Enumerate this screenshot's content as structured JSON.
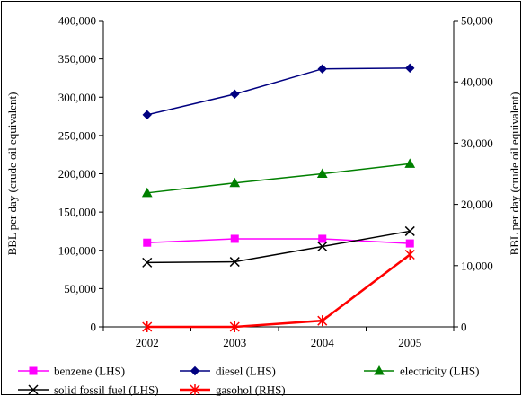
{
  "chart_data": {
    "type": "line",
    "categories": [
      "2002",
      "2003",
      "2004",
      "2005"
    ],
    "y_left": {
      "label": "BBL per day (crude oil equivalent)",
      "ylim": [
        0,
        400000
      ],
      "ticks": [
        "0",
        "50,000",
        "100,000",
        "150,000",
        "200,000",
        "250,000",
        "300,000",
        "350,000",
        "400,000"
      ],
      "tick_values": [
        0,
        50000,
        100000,
        150000,
        200000,
        250000,
        300000,
        350000,
        400000
      ]
    },
    "y_right": {
      "label": "BBL per day (crude oil equivalent)",
      "ylim": [
        0,
        50000
      ],
      "ticks": [
        "0",
        "10,000",
        "20,000",
        "30,000",
        "40,000",
        "50,000"
      ],
      "tick_values": [
        0,
        10000,
        20000,
        30000,
        40000,
        50000
      ]
    },
    "series": [
      {
        "name": "benzene (LHS)",
        "axis": "left",
        "color": "#ff00ff",
        "marker": "square",
        "values": [
          110000,
          115000,
          115000,
          109000
        ]
      },
      {
        "name": "diesel (LHS)",
        "axis": "left",
        "color": "#000080",
        "marker": "diamond",
        "values": [
          277000,
          304000,
          337000,
          338000
        ]
      },
      {
        "name": "electricity (LHS)",
        "axis": "left",
        "color": "#008000",
        "marker": "triangle",
        "values": [
          175000,
          188000,
          200000,
          213000
        ]
      },
      {
        "name": "solid fossil fuel (LHS)",
        "axis": "left",
        "color": "#000000",
        "marker": "x",
        "values": [
          84000,
          85000,
          105000,
          125000
        ]
      },
      {
        "name": "gasohol (RHS)",
        "axis": "right",
        "color": "#ff0000",
        "marker": "star",
        "values": [
          0,
          0,
          1000,
          11800
        ]
      }
    ],
    "legend_position": "bottom",
    "grid": false
  }
}
